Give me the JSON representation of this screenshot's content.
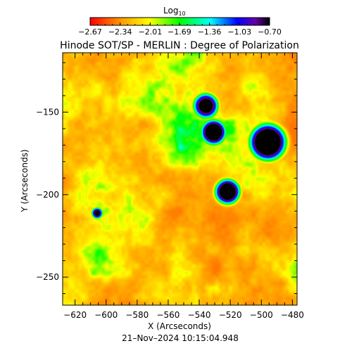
{
  "chart_data": {
    "type": "heatmap",
    "title": "Hinode SOT/SP - MERLIN : Degree of Polarization",
    "xlabel": "X (Arcseconds)",
    "ylabel": "Y (Arcseconds)",
    "xlim": [
      -628,
      -477
    ],
    "ylim": [
      -267,
      -114
    ],
    "x_ticks": [
      -620,
      -600,
      -580,
      -560,
      -540,
      -520,
      -500,
      -480
    ],
    "x_tick_labels": [
      "−620",
      "−600",
      "−580",
      "−560",
      "−540",
      "−520",
      "−500",
      "−480"
    ],
    "y_ticks": [
      -150,
      -200,
      -250
    ],
    "y_tick_labels": [
      "−150",
      "−200",
      "−250"
    ],
    "colorbar": {
      "label": "Log",
      "label_subscript": "10",
      "range": [
        -2.67,
        -0.7
      ],
      "tick_values": [
        -2.67,
        -2.34,
        -2.01,
        -1.69,
        -1.36,
        -1.03,
        -0.7
      ],
      "tick_labels": [
        "−2.67",
        "−2.34",
        "−2.01",
        "−1.69",
        "−1.36",
        "−1.03",
        "−0.70"
      ]
    },
    "footer": "21–Nov–2024 10:15:04.948",
    "colors": {
      "low": "#ff0000",
      "mid_low": "#ffff00",
      "mid": "#00ff00",
      "mid_high": "#00ffff",
      "high": "#0000ff",
      "max": "#000000"
    },
    "features": [
      {
        "name": "large-pore-east",
        "x": -496,
        "y": -168,
        "peak": -0.7
      },
      {
        "name": "pore-central",
        "x": -531,
        "y": -162,
        "peak": -0.85
      },
      {
        "name": "pore-upper",
        "x": -536,
        "y": -146,
        "peak": -1.0
      },
      {
        "name": "pore-lower",
        "x": -522,
        "y": -198,
        "peak": -0.85
      },
      {
        "name": "pore-west",
        "x": -606,
        "y": -211,
        "peak": -1.1
      }
    ]
  }
}
